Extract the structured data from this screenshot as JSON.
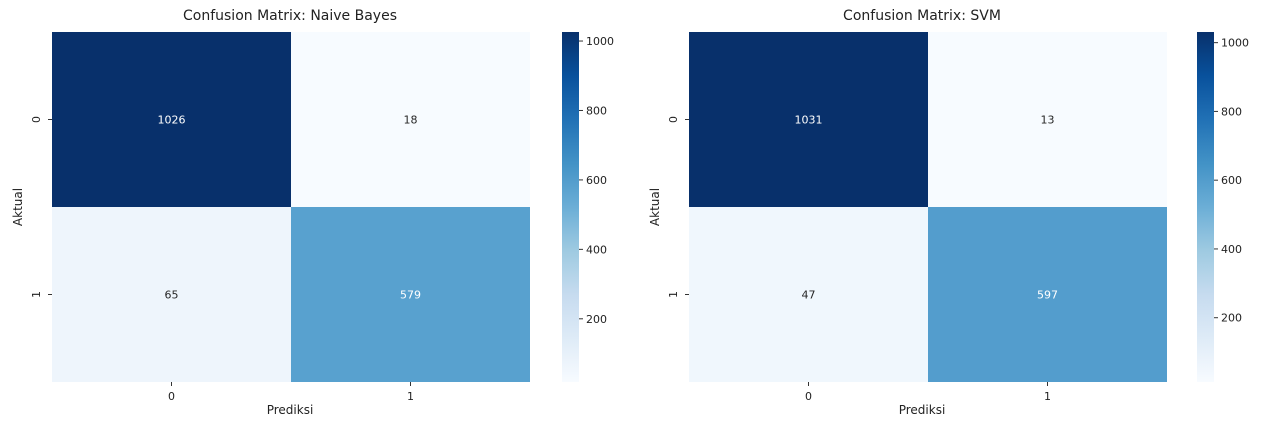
{
  "chart_data": [
    {
      "type": "heatmap",
      "title": "Confusion Matrix: Naive Bayes",
      "xlabel": "Prediksi",
      "ylabel": "Aktual",
      "x_categories": [
        "0",
        "1"
      ],
      "y_categories": [
        "0",
        "1"
      ],
      "values": [
        [
          1026,
          18
        ],
        [
          65,
          579
        ]
      ],
      "cell_labels": [
        [
          "1026",
          "18"
        ],
        [
          "65",
          "579"
        ]
      ],
      "colormap": "Blues",
      "colorbar_ticks": [
        "200",
        "400",
        "600",
        "800",
        "1000"
      ],
      "colorbar_range": [
        18,
        1026
      ]
    },
    {
      "type": "heatmap",
      "title": "Confusion Matrix: SVM",
      "xlabel": "Prediksi",
      "ylabel": "Aktual",
      "x_categories": [
        "0",
        "1"
      ],
      "y_categories": [
        "0",
        "1"
      ],
      "values": [
        [
          1031,
          13
        ],
        [
          47,
          597
        ]
      ],
      "cell_labels": [
        [
          "1031",
          "13"
        ],
        [
          "47",
          "597"
        ]
      ],
      "colormap": "Blues",
      "colorbar_ticks": [
        "200",
        "400",
        "600",
        "800",
        "1000"
      ],
      "colorbar_range": [
        13,
        1031
      ]
    }
  ],
  "colors": {
    "blues_low": "#f7fbff",
    "blues_high": "#08306b"
  }
}
